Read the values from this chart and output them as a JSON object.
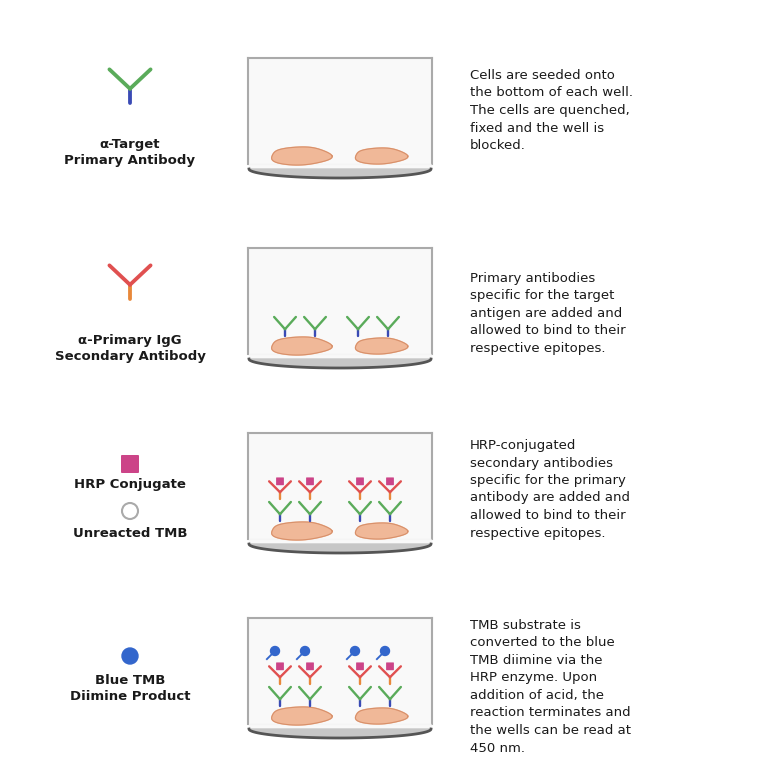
{
  "bg_color": "#ffffff",
  "rows": [
    {
      "label": "α-Target\nPrimary Antibody",
      "icon_type": "primary_ab_icon",
      "description": "Cells are seeded onto\nthe bottom of each well.\nThe cells are quenched,\nfixed and the well is\nblocked.",
      "well_content": "cells_only"
    },
    {
      "label": "α-Primary IgG\nSecondary Antibody",
      "icon_type": "secondary_ab_icon",
      "description": "Primary antibodies\nspecific for the target\nantigen are added and\nallowed to bind to their\nrespective epitopes.",
      "well_content": "primary_ab"
    },
    {
      "label_hrp": "HRP Conjugate",
      "label_tmb": "Unreacted TMB",
      "icon_type": "hrp_tmb_icon",
      "description": "HRP-conjugated\nsecondary antibodies\nspecific for the primary\nantibody are added and\nallowed to bind to their\nrespective epitopes.",
      "well_content": "secondary_ab"
    },
    {
      "label": "Blue TMB\nDiimine Product",
      "icon_type": "blue_tmb_icon",
      "description": "TMB substrate is\nconverted to the blue\nTMB diimine via the\nHRP enzyme. Upon\naddition of acid, the\nreaction terminates and\nthe wells can be read at\n450 nm.",
      "well_content": "product"
    }
  ],
  "ab_green": "#5aab5a",
  "ab_blue": "#3a4ab5",
  "ab_red": "#e05050",
  "ab_orange": "#e8883a",
  "hrp_color": "#cc4488",
  "hrp_text_color": "#cc4488",
  "cell_color": "#f0b898",
  "cell_edge_color": "#d8906a",
  "blue_tmb_color": "#3366cc",
  "well_fill": "#f5f5f5",
  "well_edge": "#aaaaaa",
  "well_bottom_fill": "#cccccc",
  "text_color": "#1a1a1a",
  "font_size_label": 9.5,
  "font_size_desc": 9.5
}
